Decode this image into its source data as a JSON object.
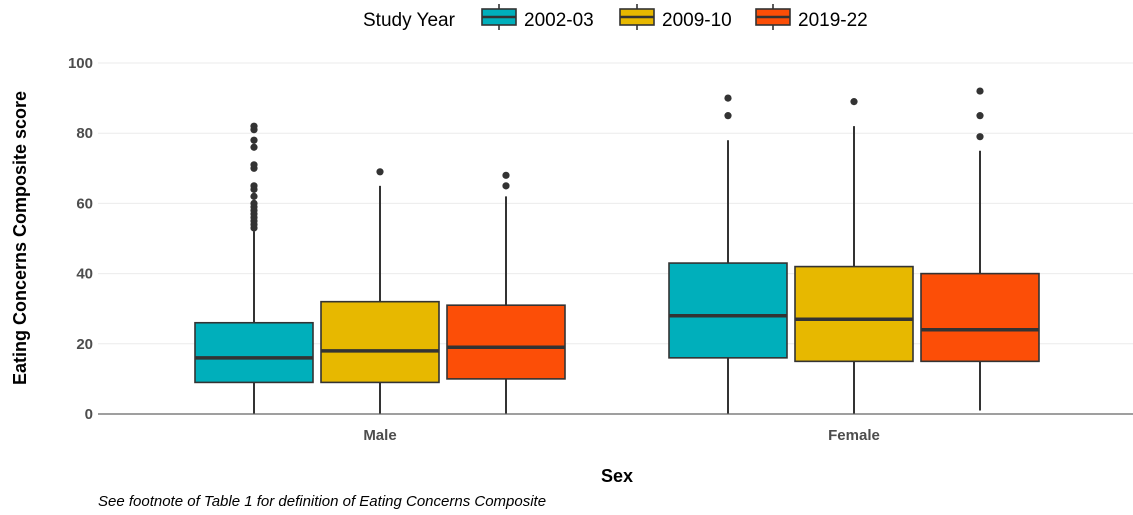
{
  "chart_data": {
    "type": "boxplot",
    "xlabel": "Sex",
    "ylabel": "Eating Concerns Composite score",
    "ylim": [
      0,
      100
    ],
    "yticks": [
      0,
      20,
      40,
      60,
      80,
      100
    ],
    "grid": true,
    "legend": {
      "title": "Study Year",
      "placement": "top"
    },
    "categories": [
      "Male",
      "Female"
    ],
    "series": [
      {
        "name": "2002-03",
        "color": "#00AFBB",
        "boxes": [
          {
            "min": 0,
            "q1": 9,
            "median": 16,
            "q3": 26,
            "max": 52,
            "outliers": [
              53,
              54,
              55,
              56,
              57,
              58,
              59,
              60,
              62,
              64,
              65,
              70,
              71,
              76,
              78,
              81,
              82
            ]
          },
          {
            "min": 0,
            "q1": 16,
            "median": 28,
            "q3": 43,
            "max": 78,
            "outliers": [
              85,
              90
            ]
          }
        ]
      },
      {
        "name": "2009-10",
        "color": "#E7B800",
        "boxes": [
          {
            "min": 0,
            "q1": 9,
            "median": 18,
            "q3": 32,
            "max": 65,
            "outliers": [
              69
            ]
          },
          {
            "min": 0,
            "q1": 15,
            "median": 27,
            "q3": 42,
            "max": 82,
            "outliers": [
              89
            ]
          }
        ]
      },
      {
        "name": "2019-22",
        "color": "#FC4E07",
        "boxes": [
          {
            "min": 0,
            "q1": 10,
            "median": 19,
            "q3": 31,
            "max": 62,
            "outliers": [
              65,
              68
            ]
          },
          {
            "min": 1,
            "q1": 15,
            "median": 24,
            "q3": 40,
            "max": 75,
            "outliers": [
              79,
              85,
              92
            ]
          }
        ]
      }
    ]
  },
  "footnote": "See footnote of Table 1 for definition of Eating Concerns Composite"
}
